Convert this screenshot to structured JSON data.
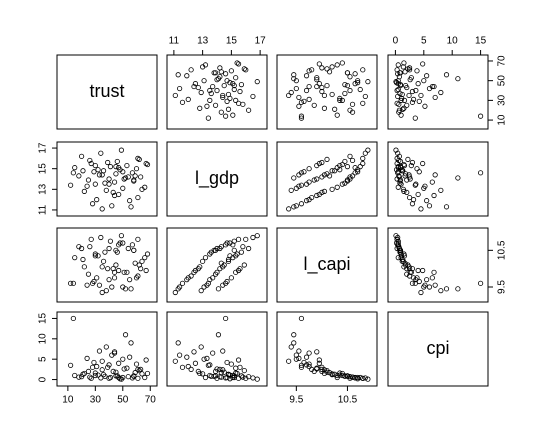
{
  "chart_data": {
    "type": "scatter-matrix",
    "color": "#000000",
    "variables": [
      {
        "name": "trust",
        "lim": [
          5,
          72
        ],
        "ticks": [
          10,
          30,
          50,
          70
        ],
        "values": [
          35,
          42,
          28,
          55,
          61,
          47,
          22,
          38,
          50,
          66,
          12,
          30,
          44,
          58,
          25,
          40,
          52,
          63,
          18,
          33,
          45,
          57,
          29,
          36,
          48,
          60,
          15,
          41,
          53,
          68,
          27,
          39,
          46,
          62,
          20,
          34,
          49,
          56,
          31,
          43,
          64,
          24,
          37,
          51,
          59,
          14,
          32,
          45,
          67,
          26,
          40,
          54,
          21,
          47,
          58,
          35,
          44,
          61,
          30,
          50
        ]
      },
      {
        "name": "l_gdp",
        "lim": [
          10.8,
          17.2
        ],
        "ticks": [
          11,
          13,
          15,
          17
        ],
        "values": [
          11.1,
          11.4,
          11.6,
          11.9,
          12.2,
          12.5,
          12.8,
          12.9,
          13.1,
          13.2,
          13.4,
          13.5,
          13.7,
          13.8,
          13.9,
          14.0,
          14.1,
          14.2,
          14.3,
          14.4,
          14.5,
          14.6,
          14.7,
          14.8,
          14.9,
          15.0,
          15.1,
          15.2,
          15.3,
          15.4,
          15.5,
          15.6,
          15.7,
          15.9,
          16.2,
          16.5,
          16.8,
          11.3,
          12.0,
          12.7,
          13.0,
          13.3,
          13.6,
          14.0,
          14.3,
          14.6,
          14.9,
          15.2,
          15.5,
          15.8,
          13.5,
          14.2,
          14.8,
          15.1,
          13.9,
          14.4,
          12.4,
          16.0,
          15.3,
          14.7
        ]
      },
      {
        "name": "l_capi",
        "lim": [
          9.2,
          11.0
        ],
        "ticks": [
          9.5,
          10.5
        ],
        "values": [
          9.35,
          9.5,
          9.6,
          9.7,
          9.8,
          9.95,
          10.05,
          9.4,
          9.5,
          10.3,
          9.6,
          10.4,
          9.75,
          10.5,
          9.85,
          10.55,
          9.45,
          10.0,
          10.6,
          9.55,
          10.1,
          10.65,
          9.65,
          10.2,
          10.7,
          9.75,
          10.3,
          10.75,
          9.9,
          10.4,
          10.8,
          10.0,
          10.45,
          10.1,
          10.55,
          10.85,
          10.9,
          9.45,
          9.75,
          10.0,
          10.2,
          9.55,
          10.45,
          9.9,
          10.15,
          9.6,
          10.35,
          10.5,
          9.95,
          10.6,
          9.7,
          10.55,
          10.25,
          10.65,
          10.5,
          10.05,
          9.9,
          10.8,
          10.35,
          10.7
        ]
      },
      {
        "name": "cpi",
        "lim": [
          -0.6,
          15.6
        ],
        "ticks": [
          0,
          5,
          10,
          15
        ],
        "values": [
          4.5,
          6,
          3,
          5.5,
          2.5,
          4,
          1.5,
          8,
          5,
          0.5,
          3.5,
          1,
          6.5,
          0.8,
          2,
          0.3,
          11,
          2.5,
          0.6,
          7,
          1.8,
          0.4,
          4.2,
          1.2,
          0.2,
          3.8,
          1,
          0.5,
          2.8,
          1.5,
          0.3,
          3,
          0.9,
          2.2,
          0.7,
          0.4,
          0.1,
          9,
          3.2,
          2,
          1.4,
          5.2,
          0.8,
          2.6,
          1.7,
          15,
          1.1,
          0.9,
          4.8,
          0.6,
          3.6,
          0.7,
          1.3,
          0.5,
          0.9,
          2.4,
          6.8,
          0.3,
          1.6,
          0.5
        ]
      }
    ]
  }
}
